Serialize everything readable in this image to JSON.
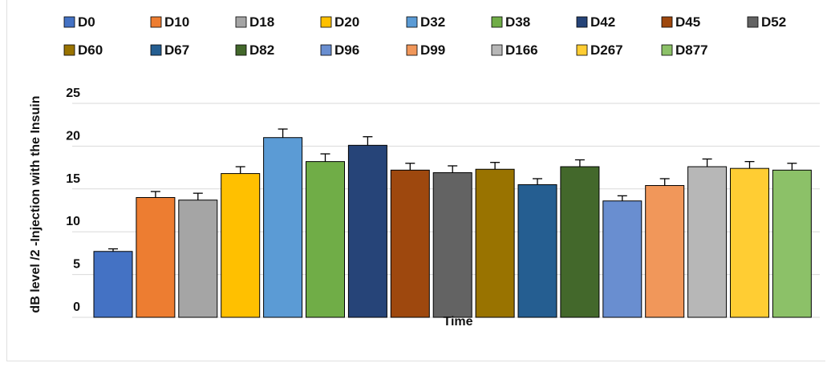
{
  "chart_data": {
    "type": "bar",
    "title": "",
    "xlabel": "Time",
    "ylabel": "dB level /2 -Injection with the Insuin",
    "ylim": [
      0,
      25
    ],
    "yticks": [
      0,
      5,
      10,
      15,
      20,
      25
    ],
    "grid": true,
    "legend_position": "top",
    "categories": [
      "D0",
      "D10",
      "D18",
      "D20",
      "D32",
      "D38",
      "D42",
      "D45",
      "D52",
      "D60",
      "D67",
      "D82",
      "D96",
      "D99",
      "D166",
      "D267",
      "D877"
    ],
    "values": [
      7.7,
      14.0,
      13.7,
      16.8,
      21.0,
      18.2,
      20.1,
      17.2,
      16.9,
      17.3,
      15.5,
      17.6,
      13.6,
      15.4,
      17.6,
      17.4,
      17.2
    ],
    "errors": [
      0.3,
      0.7,
      0.8,
      0.8,
      1.0,
      0.9,
      1.0,
      0.8,
      0.8,
      0.8,
      0.7,
      0.8,
      0.6,
      0.8,
      0.9,
      0.8,
      0.8
    ],
    "colors": [
      "#4472C4",
      "#ED7D31",
      "#A5A5A5",
      "#FFC000",
      "#5B9BD5",
      "#70AD47",
      "#264478",
      "#9E480E",
      "#636363",
      "#997300",
      "#255E91",
      "#43682B",
      "#698ED0",
      "#F1975A",
      "#B7B7B7",
      "#FFCD33",
      "#8CC168"
    ]
  }
}
